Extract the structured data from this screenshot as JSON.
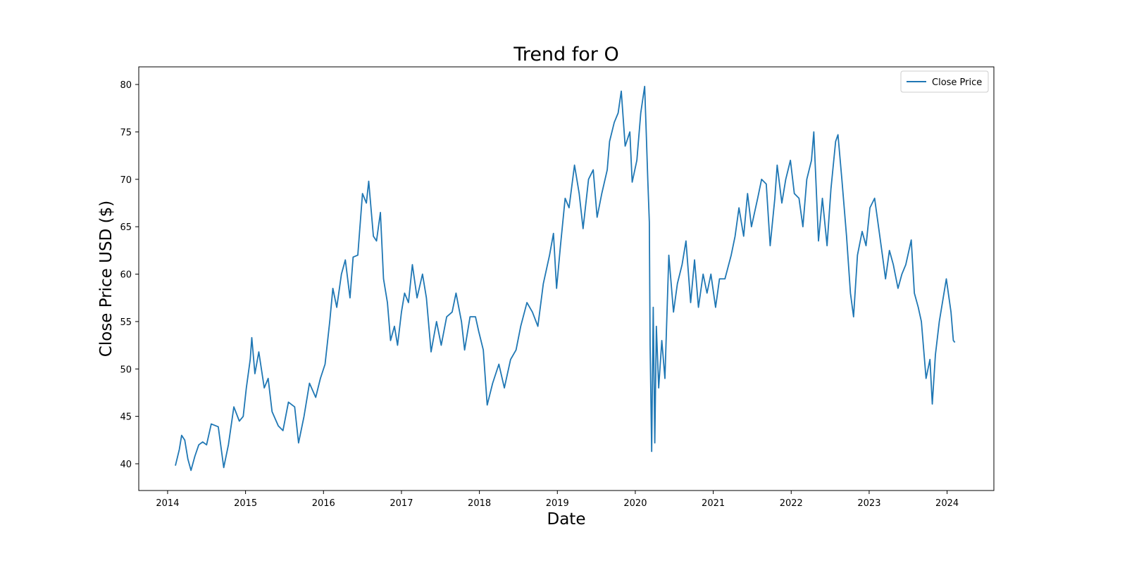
{
  "chart_data": {
    "type": "line",
    "title": "Trend for O",
    "x_label": "Date",
    "y_label": "Close Price USD ($)",
    "x": [
      2014.1,
      2014.15,
      2014.18,
      2014.22,
      2014.26,
      2014.3,
      2014.35,
      2014.4,
      2014.45,
      2014.5,
      2014.56,
      2014.65,
      2014.72,
      2014.78,
      2014.85,
      2014.92,
      2014.97,
      2015.01,
      2015.06,
      2015.08,
      2015.12,
      2015.17,
      2015.24,
      2015.29,
      2015.34,
      2015.42,
      2015.48,
      2015.55,
      2015.63,
      2015.68,
      2015.75,
      2015.82,
      2015.9,
      2015.96,
      2016.02,
      2016.08,
      2016.12,
      2016.17,
      2016.23,
      2016.28,
      2016.34,
      2016.38,
      2016.44,
      2016.5,
      2016.55,
      2016.58,
      2016.64,
      2016.68,
      2016.73,
      2016.77,
      2016.82,
      2016.86,
      2016.91,
      2016.95,
      2017.0,
      2017.04,
      2017.09,
      2017.14,
      2017.2,
      2017.27,
      2017.32,
      2017.38,
      2017.45,
      2017.51,
      2017.58,
      2017.65,
      2017.7,
      2017.77,
      2017.81,
      2017.88,
      2017.95,
      2017.99,
      2018.05,
      2018.1,
      2018.17,
      2018.25,
      2018.32,
      2018.4,
      2018.47,
      2018.53,
      2018.61,
      2018.68,
      2018.75,
      2018.82,
      2018.9,
      2018.95,
      2018.99,
      2019.04,
      2019.1,
      2019.15,
      2019.22,
      2019.28,
      2019.33,
      2019.4,
      2019.46,
      2019.51,
      2019.57,
      2019.64,
      2019.67,
      2019.73,
      2019.78,
      2019.82,
      2019.87,
      2019.93,
      2019.96,
      2020.02,
      2020.07,
      2020.12,
      2020.14,
      2020.16,
      2020.18,
      2020.19,
      2020.21,
      2020.23,
      2020.25,
      2020.27,
      2020.3,
      2020.34,
      2020.38,
      2020.43,
      2020.49,
      2020.54,
      2020.6,
      2020.65,
      2020.71,
      2020.76,
      2020.81,
      2020.87,
      2020.92,
      2020.97,
      2021.03,
      2021.08,
      2021.15,
      2021.23,
      2021.28,
      2021.33,
      2021.39,
      2021.44,
      2021.49,
      2021.57,
      2021.62,
      2021.68,
      2021.73,
      2021.79,
      2021.82,
      2021.88,
      2021.93,
      2021.99,
      2022.04,
      2022.1,
      2022.15,
      2022.2,
      2022.26,
      2022.29,
      2022.35,
      2022.4,
      2022.46,
      2022.51,
      2022.57,
      2022.6,
      2022.65,
      2022.71,
      2022.76,
      2022.8,
      2022.85,
      2022.91,
      2022.96,
      2023.01,
      2023.07,
      2023.12,
      2023.17,
      2023.21,
      2023.26,
      2023.31,
      2023.37,
      2023.42,
      2023.47,
      2023.54,
      2023.58,
      2023.63,
      2023.67,
      2023.73,
      2023.78,
      2023.81,
      2023.85,
      2023.9,
      2023.96,
      2023.99,
      2024.05,
      2024.08,
      2024.1
    ],
    "series": [
      {
        "name": "Close Price",
        "color": "#1f77b4",
        "values": [
          39.8,
          41.5,
          43.0,
          42.5,
          40.5,
          39.3,
          40.8,
          42.0,
          42.3,
          42.0,
          44.2,
          43.9,
          39.6,
          42.0,
          46.0,
          44.5,
          45.0,
          48.0,
          51.0,
          53.3,
          49.5,
          51.8,
          48.0,
          49.0,
          45.5,
          44.0,
          43.5,
          46.5,
          46.0,
          42.2,
          45.0,
          48.5,
          47.0,
          49.0,
          50.5,
          55.0,
          58.5,
          56.5,
          60.0,
          61.5,
          57.5,
          61.8,
          62.0,
          68.5,
          67.5,
          69.8,
          64.0,
          63.5,
          66.5,
          59.5,
          57.0,
          53.0,
          54.5,
          52.5,
          56.0,
          58.0,
          57.0,
          61.0,
          57.5,
          60.0,
          57.5,
          51.8,
          55.0,
          52.5,
          55.5,
          56.0,
          58.0,
          55.0,
          52.0,
          55.5,
          55.5,
          54.0,
          52.0,
          46.2,
          48.5,
          50.5,
          48.0,
          51.0,
          52.0,
          54.5,
          57.0,
          56.0,
          54.5,
          59.0,
          62.0,
          64.3,
          58.5,
          63.0,
          68.0,
          67.0,
          71.5,
          68.5,
          64.8,
          70.0,
          71.0,
          66.0,
          68.5,
          71.0,
          74.0,
          76.0,
          77.0,
          79.3,
          73.5,
          75.0,
          69.7,
          72.0,
          77.0,
          79.8,
          75.0,
          70.0,
          65.5,
          52.5,
          41.3,
          56.5,
          42.2,
          54.5,
          48.0,
          53.0,
          49.0,
          62.0,
          56.0,
          59.0,
          61.0,
          63.5,
          57.0,
          61.5,
          56.5,
          60.0,
          58.0,
          60.0,
          56.5,
          59.5,
          59.5,
          62.0,
          64.0,
          67.0,
          64.0,
          68.5,
          65.0,
          68.0,
          70.0,
          69.5,
          63.0,
          68.0,
          71.5,
          67.5,
          70.0,
          72.0,
          68.5,
          68.0,
          65.0,
          70.0,
          72.0,
          75.0,
          63.5,
          68.0,
          63.0,
          69.0,
          74.0,
          74.7,
          70.0,
          64.0,
          58.0,
          55.5,
          62.0,
          64.5,
          63.0,
          67.0,
          68.0,
          65.0,
          62.0,
          59.5,
          62.5,
          61.0,
          58.5,
          60.0,
          61.0,
          63.6,
          58.0,
          56.5,
          55.0,
          49.0,
          51.0,
          46.3,
          51.5,
          55.0,
          58.0,
          59.5,
          56.0,
          53.0,
          52.8
        ]
      }
    ],
    "xlim": [
      2013.63,
      2024.6
    ],
    "ylim": [
      37.18,
      81.86
    ],
    "xticks": [
      2014,
      2015,
      2016,
      2017,
      2018,
      2019,
      2020,
      2021,
      2022,
      2023,
      2024
    ],
    "yticks": [
      40,
      45,
      50,
      55,
      60,
      65,
      70,
      75,
      80
    ],
    "grid": false,
    "legend": "upper right"
  }
}
